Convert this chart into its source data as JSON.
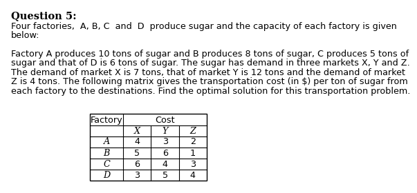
{
  "title": "Question 5:",
  "para1_normal": "Four factories, ",
  "para1_italic": [
    "A",
    "B",
    "C",
    "D"
  ],
  "para2_lines": [
    "Factory A produces 10 tons of sugar and B produces 8 tons of sugar, C produces 5 tons of",
    "sugar and that of D is 6 tons of sugar. The sugar has demand in three markets X, Y and Z.",
    "The demand of market X is 7 tons, that of market Y is 12 tons and the demand of market",
    "Z is 4 tons. The following matrix gives the transportation cost (in $) per ton of sugar from",
    "each factory to the destinations. Find the optimal solution for this transportation problem."
  ],
  "table_header1": "Factory",
  "table_header2": "Cost",
  "col_headers": [
    "X",
    "Y",
    "Z"
  ],
  "row_labels": [
    "A",
    "B",
    "C",
    "D"
  ],
  "table_data": [
    [
      4,
      3,
      2
    ],
    [
      5,
      6,
      1
    ],
    [
      6,
      4,
      3
    ],
    [
      3,
      5,
      4
    ]
  ],
  "bg_color": "#ffffff",
  "text_color": "#000000",
  "font_size_title": 10.5,
  "font_size_body": 9.2,
  "font_size_table": 9.2
}
